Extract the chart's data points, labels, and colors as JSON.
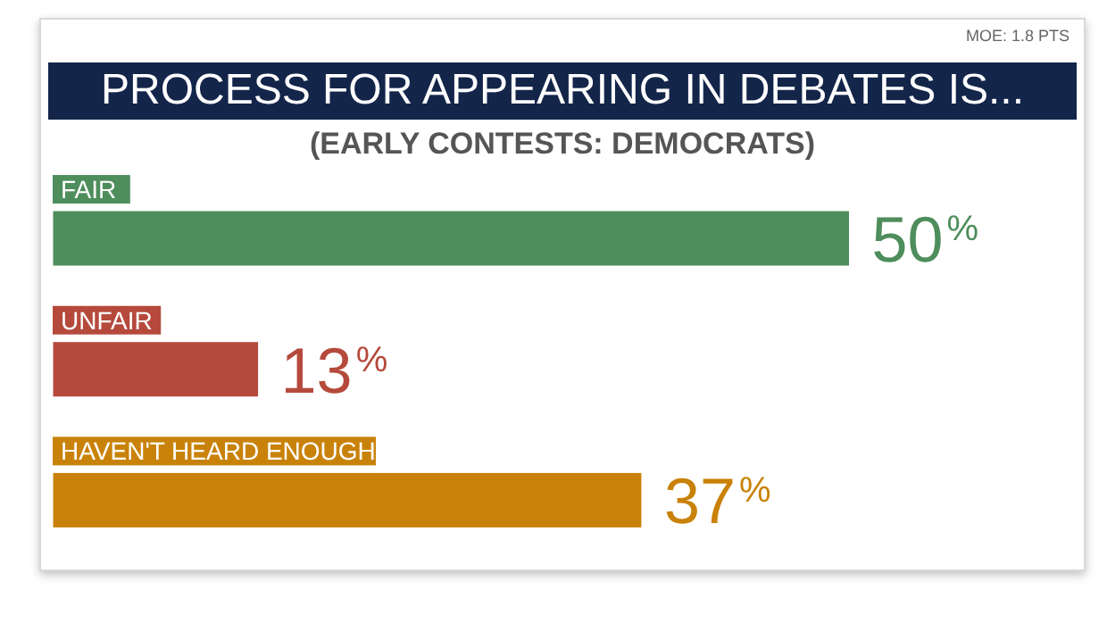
{
  "chart_data": {
    "type": "bar",
    "orientation": "horizontal",
    "title": "PROCESS FOR APPEARING IN DEBATES IS...",
    "subtitle": "(EARLY CONTESTS: DEMOCRATS)",
    "annotations": [
      "MOE: 1.8 PTS"
    ],
    "categories": [
      "FAIR",
      "UNFAIR",
      "HAVEN'T HEARD ENOUGH"
    ],
    "values": [
      50,
      13,
      37
    ],
    "colors": [
      "#4e8d5c",
      "#b54a3c",
      "#c98209"
    ],
    "value_labels": [
      "50$^{%}$",
      "13$^{%}$",
      "37$^{%}$"
    ]
  }
}
